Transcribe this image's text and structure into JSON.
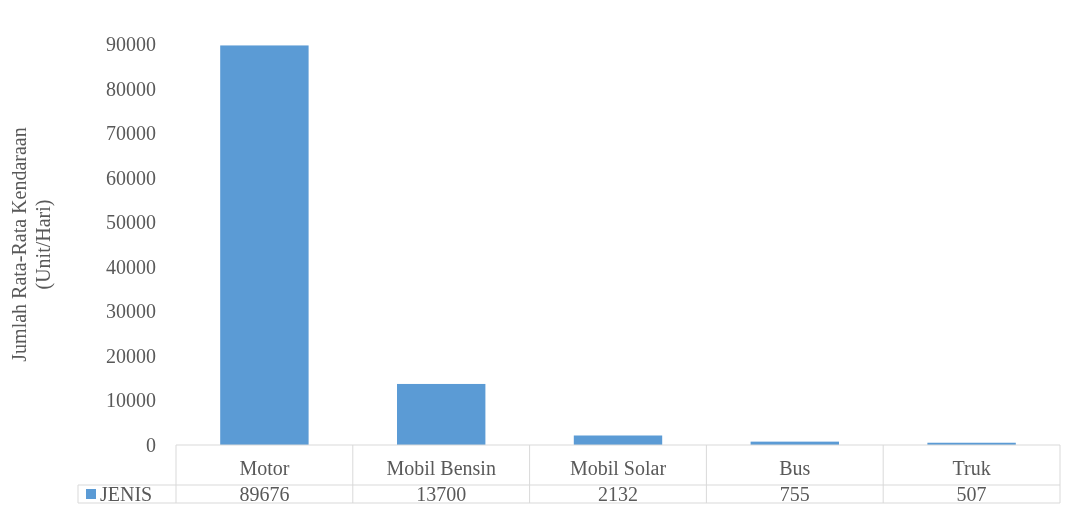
{
  "chart_data": {
    "type": "bar",
    "ylabel": "Jumlah Rata-Rata Kendaraan (Unit/Hari)",
    "categories": [
      "Motor",
      "Mobil Bensin",
      "Mobil Solar",
      "Bus",
      "Truk"
    ],
    "series": [
      {
        "name": "JENIS",
        "color": "#5b9bd5",
        "values": [
          89676,
          13700,
          2132,
          755,
          507
        ]
      }
    ],
    "ylim": [
      0,
      90000
    ],
    "yticks": [
      0,
      10000,
      20000,
      30000,
      40000,
      50000,
      60000,
      70000,
      80000,
      90000
    ],
    "data_labels": true,
    "legend": "bottom"
  }
}
